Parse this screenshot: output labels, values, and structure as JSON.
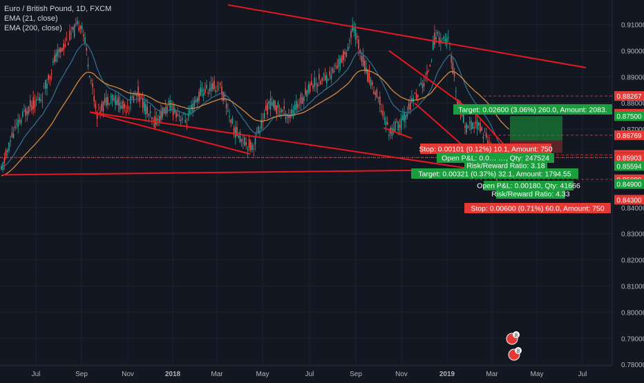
{
  "chart_data": {
    "type": "candlestick",
    "title": "Euro / British Pound, 1D, FXCM",
    "indicators": [
      "EMA (21, close)",
      "EMA (200, close)"
    ],
    "x_ticks": [
      "Jul",
      "Sep",
      "Nov",
      "2018",
      "Mar",
      "May",
      "Jul",
      "Sep",
      "Nov",
      "2019",
      "Mar",
      "May",
      "Jul"
    ],
    "y_ticks": [
      "0.91000",
      "0.90000",
      "0.89000",
      "0.88000",
      "0.87000",
      "0.86000",
      "0.85000",
      "0.84000",
      "0.83000",
      "0.82000",
      "0.81000",
      "0.80000",
      "0.79000",
      "0.78000"
    ],
    "ylim": [
      0.774,
      0.9175
    ],
    "price_labels": [
      {
        "text": "0.88267",
        "value": 0.88267,
        "color": "#e53935"
      },
      {
        "text": "0.87586",
        "value": 0.87586,
        "color": "#e53935"
      },
      {
        "text": "0.87500",
        "value": 0.875,
        "color": "#1b9e3e"
      },
      {
        "text": "0.86769",
        "value": 0.86769,
        "color": "#e53935"
      },
      {
        "text": "0.86016",
        "value": 0.86016,
        "color": "#e53935"
      },
      {
        "text": "0.85915",
        "value": 0.85915,
        "color": "#3a3f4b"
      },
      {
        "text": "0.85903",
        "value": 0.85903,
        "color": "#e53935"
      },
      {
        "text": "0.85594",
        "value": 0.85594,
        "color": "#1b9e3e"
      },
      {
        "text": "0.85080",
        "value": 0.8508,
        "color": "#e53935"
      },
      {
        "text": "0.84900",
        "value": 0.849,
        "color": "#1b9e3e"
      },
      {
        "text": "0.84300",
        "value": 0.843,
        "color": "#e53935"
      }
    ],
    "trade_boxes": [
      {
        "text": "Target: 0.02600 (3.06%) 260.0, Amount: 2083.",
        "color": "#1b9e3e"
      },
      {
        "text": "Stop: 0.00101 (0.12%) 10.1, Amount: 750",
        "color": "#e53935"
      },
      {
        "text": "Open P&L: 0.0… …, Qty: 247524",
        "color": "#1b9e3e"
      },
      {
        "text": "Risk/Reward Ratio: 3.18",
        "color": "#1b9e3e"
      },
      {
        "text": "Target: 0.00321 (0.37%) 32.1, Amount: 1794.55",
        "color": "#1b9e3e"
      },
      {
        "text": "Open P&L: 0.00180, Qty: 41666",
        "color": "#1b9e3e"
      },
      {
        "text": "Risk/Reward Ratio: 4.33",
        "color": "#1b9e3e"
      },
      {
        "text": "Stop: 0.00600 (0.71%) 60.0, Amount: 750",
        "color": "#e53935"
      }
    ],
    "event_badges": [
      "8",
      "8"
    ],
    "colors": {
      "up": "#26a69a",
      "down": "#ef5350",
      "ema21": "#2f6f8f",
      "ema200": "#d8893a",
      "trendline": "#e8191c",
      "axis_text": "#b2b5be",
      "grid": "#1e222d"
    }
  }
}
